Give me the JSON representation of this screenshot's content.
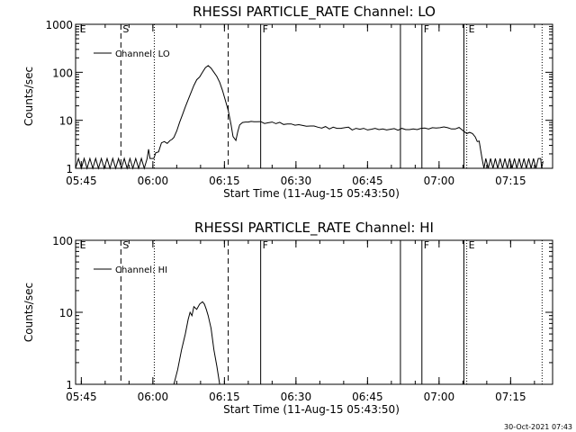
{
  "chart_data": [
    {
      "type": "line",
      "title": "RHESSI PARTICLE_RATE Channel: LO",
      "xlabel": "Start Time (11-Aug-15 05:43:50)",
      "ylabel": "Counts/sec",
      "x_units": "minutes since 05:43:50",
      "xlim": [
        0,
        100
      ],
      "ylim": [
        1,
        1000
      ],
      "y_scale": "log",
      "x_ticks": [
        "05:45",
        "06:00",
        "06:15",
        "06:30",
        "06:45",
        "07:00",
        "07:15"
      ],
      "y_ticks": [
        "1",
        "10",
        "100",
        "1000"
      ],
      "legend": "Channel: LO",
      "legend_position": "top-left",
      "markers": [
        {
          "label": "E",
          "style": "text",
          "x": 0.5
        },
        {
          "label": "S",
          "style": "dashed",
          "x": 9.5
        },
        {
          "label": "",
          "style": "dotted",
          "x": 16.5
        },
        {
          "label": "",
          "style": "dashed",
          "x": 32.0
        },
        {
          "label": "F",
          "style": "solid",
          "x": 38.8
        },
        {
          "label": "",
          "style": "solid",
          "x": 68.1
        },
        {
          "label": "F",
          "style": "solid",
          "x": 72.6
        },
        {
          "label": "",
          "style": "solid",
          "x": 81.4
        },
        {
          "label": "E",
          "style": "dotted",
          "x": 82.0
        },
        {
          "label": "",
          "style": "dotted",
          "x": 97.8
        }
      ],
      "series": [
        {
          "name": "Channel: LO",
          "points": [
            [
              0,
              1
            ],
            [
              0.6,
              1.6
            ],
            [
              1.2,
              1
            ],
            [
              1.8,
              1.6
            ],
            [
              2.4,
              1
            ],
            [
              3,
              1.6
            ],
            [
              3.6,
              1
            ],
            [
              4.2,
              1.6
            ],
            [
              4.8,
              1
            ],
            [
              5.4,
              1.6
            ],
            [
              6,
              1
            ],
            [
              6.6,
              1.6
            ],
            [
              7.2,
              1
            ],
            [
              7.8,
              1.6
            ],
            [
              8.4,
              1
            ],
            [
              9,
              1.6
            ],
            [
              9.6,
              1
            ],
            [
              10.2,
              1.6
            ],
            [
              10.8,
              1
            ],
            [
              11.4,
              1.6
            ],
            [
              12,
              1
            ],
            [
              12.6,
              1.6
            ],
            [
              13.2,
              1
            ],
            [
              13.8,
              1.6
            ],
            [
              14.4,
              1
            ],
            [
              15,
              1.6
            ],
            [
              15.3,
              2.5
            ],
            [
              15.6,
              1.6
            ],
            [
              16.4,
              1.6
            ],
            [
              16.8,
              2.1
            ],
            [
              17.4,
              2.2
            ],
            [
              18,
              3.4
            ],
            [
              18.6,
              3.6
            ],
            [
              19.2,
              3.3
            ],
            [
              19.8,
              3.8
            ],
            [
              20.2,
              4
            ],
            [
              20.6,
              4.4
            ],
            [
              21.2,
              6
            ],
            [
              21.8,
              9
            ],
            [
              22.4,
              13
            ],
            [
              23,
              19
            ],
            [
              23.6,
              27
            ],
            [
              24.2,
              38
            ],
            [
              24.8,
              53
            ],
            [
              25.4,
              70
            ],
            [
              26,
              80
            ],
            [
              26.6,
              100
            ],
            [
              27.2,
              125
            ],
            [
              27.8,
              138
            ],
            [
              28.4,
              122
            ],
            [
              29,
              100
            ],
            [
              29.6,
              82
            ],
            [
              30.2,
              62
            ],
            [
              30.8,
              42
            ],
            [
              31.4,
              26
            ],
            [
              32,
              16
            ],
            [
              32.6,
              8
            ],
            [
              33,
              4.6
            ],
            [
              33.6,
              3.8
            ],
            [
              34,
              5.8
            ],
            [
              34.4,
              8
            ],
            [
              35,
              9
            ],
            [
              35.6,
              9.2
            ],
            [
              36.2,
              9.2
            ],
            [
              36.8,
              9.5
            ],
            [
              37.4,
              9.3
            ],
            [
              38,
              9.3
            ],
            [
              38.8,
              9.4
            ],
            [
              39.6,
              8.6
            ],
            [
              40.4,
              8.9
            ],
            [
              41.2,
              9.2
            ],
            [
              42,
              8.5
            ],
            [
              42.8,
              9.1
            ],
            [
              43.6,
              8.2
            ],
            [
              44.4,
              8.4
            ],
            [
              45.2,
              8.4
            ],
            [
              46,
              7.9
            ],
            [
              46.8,
              8.1
            ],
            [
              47.6,
              7.8
            ],
            [
              48.4,
              7.5
            ],
            [
              49.2,
              7.6
            ],
            [
              50,
              7.6
            ],
            [
              50.8,
              7.2
            ],
            [
              51.6,
              6.9
            ],
            [
              52.4,
              7.4
            ],
            [
              53.2,
              6.6
            ],
            [
              54,
              7.2
            ],
            [
              54.8,
              6.8
            ],
            [
              55.6,
              6.8
            ],
            [
              56.4,
              7
            ],
            [
              57.2,
              7.2
            ],
            [
              58,
              6.3
            ],
            [
              58.8,
              6.8
            ],
            [
              59.6,
              6.5
            ],
            [
              60.4,
              6.8
            ],
            [
              61.2,
              6.3
            ],
            [
              62,
              6.5
            ],
            [
              62.8,
              6.8
            ],
            [
              63.6,
              6.4
            ],
            [
              64.4,
              6.6
            ],
            [
              65.2,
              6.3
            ],
            [
              66,
              6.5
            ],
            [
              66.8,
              6.7
            ],
            [
              67.6,
              6.2
            ],
            [
              68.4,
              6.8
            ],
            [
              69.2,
              6.4
            ],
            [
              70,
              6.4
            ],
            [
              70.8,
              6.6
            ],
            [
              71.6,
              6.4
            ],
            [
              72.4,
              6.8
            ],
            [
              73.2,
              6.9
            ],
            [
              74,
              6.6
            ],
            [
              74.8,
              7
            ],
            [
              75.6,
              6.9
            ],
            [
              76.4,
              7
            ],
            [
              77.2,
              7.3
            ],
            [
              78,
              7
            ],
            [
              78.8,
              6.6
            ],
            [
              79.6,
              6.6
            ],
            [
              80.4,
              7.1
            ],
            [
              81.2,
              6.1
            ],
            [
              82,
              5.3
            ],
            [
              82.6,
              5.6
            ],
            [
              83.2,
              5.3
            ],
            [
              83.8,
              4.5
            ],
            [
              84.2,
              3.6
            ],
            [
              84.6,
              3.7
            ],
            [
              85.2,
              1.6
            ],
            [
              85.6,
              1
            ],
            [
              86,
              1.6
            ],
            [
              86.5,
              1
            ],
            [
              87,
              1.6
            ],
            [
              87.5,
              1
            ],
            [
              88,
              1.6
            ],
            [
              88.5,
              1
            ],
            [
              89,
              1.6
            ],
            [
              89.5,
              1
            ],
            [
              90,
              1.6
            ],
            [
              90.5,
              1
            ],
            [
              91,
              1.6
            ],
            [
              91.5,
              1
            ],
            [
              92,
              1.6
            ],
            [
              92.5,
              1
            ],
            [
              93,
              1.6
            ],
            [
              93.5,
              1
            ],
            [
              94,
              1.6
            ],
            [
              94.5,
              1
            ],
            [
              95,
              1.6
            ],
            [
              95.5,
              1
            ],
            [
              96,
              1.6
            ],
            [
              96.5,
              1
            ],
            [
              97,
              1.6
            ],
            [
              97.5,
              1.6
            ],
            [
              97.7,
              1
            ],
            [
              98,
              1.4
            ]
          ]
        }
      ]
    },
    {
      "type": "line",
      "title": "RHESSI PARTICLE_RATE Channel: HI",
      "xlabel": "Start Time (11-Aug-15 05:43:50)",
      "ylabel": "Counts/sec",
      "x_units": "minutes since 05:43:50",
      "xlim": [
        0,
        100
      ],
      "ylim": [
        1,
        100
      ],
      "y_scale": "log",
      "x_ticks": [
        "05:45",
        "06:00",
        "06:15",
        "06:30",
        "06:45",
        "07:00",
        "07:15"
      ],
      "y_ticks": [
        "1",
        "10",
        "100"
      ],
      "legend": "Channel: HI",
      "legend_position": "top-left",
      "markers": [
        {
          "label": "E",
          "style": "text",
          "x": 0.5
        },
        {
          "label": "S",
          "style": "dashed",
          "x": 9.5
        },
        {
          "label": "",
          "style": "dotted",
          "x": 16.5
        },
        {
          "label": "",
          "style": "dashed",
          "x": 32.0
        },
        {
          "label": "F",
          "style": "solid",
          "x": 38.8
        },
        {
          "label": "",
          "style": "solid",
          "x": 68.1
        },
        {
          "label": "F",
          "style": "solid",
          "x": 72.6
        },
        {
          "label": "",
          "style": "solid",
          "x": 81.4
        },
        {
          "label": "E",
          "style": "dotted",
          "x": 82.0
        },
        {
          "label": "",
          "style": "dotted",
          "x": 97.8
        }
      ],
      "series": [
        {
          "name": "Channel: HI",
          "points": [
            [
              20.6,
              1
            ],
            [
              21.4,
              1.6
            ],
            [
              22.2,
              3
            ],
            [
              23,
              5
            ],
            [
              23.6,
              8
            ],
            [
              24,
              10
            ],
            [
              24.4,
              9
            ],
            [
              24.8,
              12
            ],
            [
              25.4,
              11
            ],
            [
              26,
              13
            ],
            [
              26.6,
              14
            ],
            [
              27,
              13
            ],
            [
              27.4,
              11
            ],
            [
              27.8,
              9
            ],
            [
              28.4,
              6
            ],
            [
              29,
              3
            ],
            [
              29.6,
              1.8
            ],
            [
              30.2,
              1
            ]
          ]
        }
      ]
    }
  ],
  "footer": {
    "timestamp": "30-Oct-2021 07:43"
  }
}
